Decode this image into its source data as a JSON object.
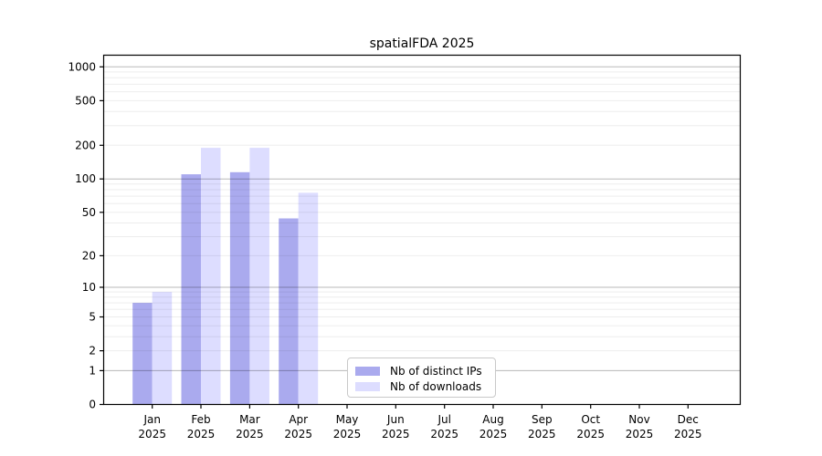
{
  "chart_data": {
    "type": "bar",
    "title": "spatialFDA 2025",
    "categories": [
      "Jan",
      "Feb",
      "Mar",
      "Apr",
      "May",
      "Jun",
      "Jul",
      "Aug",
      "Sep",
      "Oct",
      "Nov",
      "Dec"
    ],
    "category_year": "2025",
    "series": [
      {
        "name": "Nb of distinct IPs",
        "color": "#aaaaee",
        "values": [
          7,
          110,
          115,
          44,
          0,
          0,
          0,
          0,
          0,
          0,
          0,
          0
        ]
      },
      {
        "name": "Nb of downloads",
        "color": "#ddddff",
        "values": [
          9,
          190,
          190,
          75,
          0,
          0,
          0,
          0,
          0,
          0,
          0,
          0
        ]
      }
    ],
    "xlabel": "",
    "ylabel": "",
    "y_scale": "log1p",
    "y_ticks": [
      0,
      1,
      2,
      5,
      10,
      20,
      50,
      100,
      200,
      500,
      1000
    ],
    "y_major_gridlines": [
      1,
      10,
      100,
      1000
    ],
    "ylim": [
      0,
      1265
    ],
    "grid": true,
    "legend_position": "lower-center",
    "colors": {
      "axis": "#000000",
      "major_grid": "rgba(0,0,0,0.28)",
      "minor_grid": "rgba(0,0,0,0.07)"
    }
  }
}
